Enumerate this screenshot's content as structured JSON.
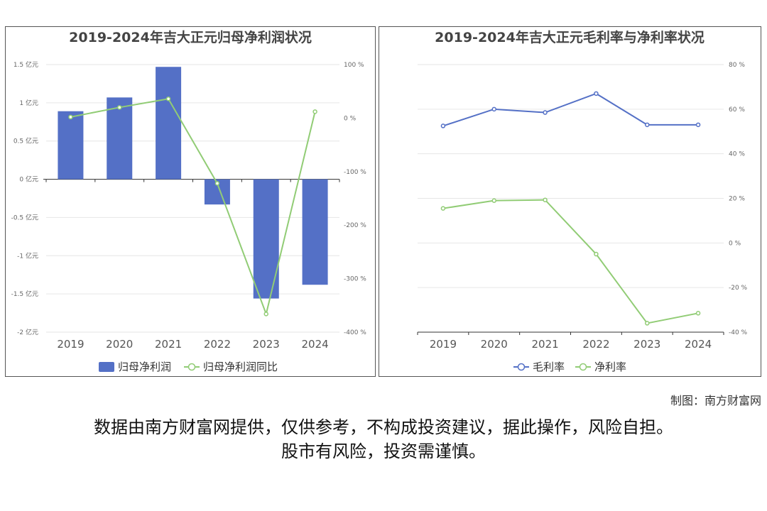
{
  "chart_data": [
    {
      "type": "bar",
      "title": "2019-2024年吉大正元归母净利润状况",
      "categories": [
        "2019",
        "2020",
        "2021",
        "2022",
        "2023",
        "2024"
      ],
      "series": [
        {
          "name": "归母净利润",
          "type": "bar",
          "axis": "left",
          "color": "#5470c6",
          "values": [
            0.89,
            1.07,
            1.47,
            -0.33,
            -1.56,
            -1.38
          ]
        },
        {
          "name": "归母净利润同比",
          "type": "line",
          "axis": "right",
          "color": "#91cc75",
          "values": [
            2,
            20,
            36,
            -122,
            -366,
            12
          ]
        }
      ],
      "left_axis": {
        "ticks": [
          "1.5 亿元",
          "1 亿元",
          "0.5 亿元",
          "0 亿元",
          "-0.5 亿元",
          "-1 亿元",
          "-1.5 亿元",
          "-2 亿元"
        ],
        "range": [
          -2,
          1.5
        ]
      },
      "right_axis": {
        "ticks": [
          "100 %",
          "0 %",
          "-100 %",
          "-200 %",
          "-300 %",
          "-400 %"
        ],
        "range": [
          -400,
          100
        ]
      },
      "legend": "bottom"
    },
    {
      "type": "line",
      "title": "2019-2024年吉大正元毛利率与净利率状况",
      "categories": [
        "2019",
        "2020",
        "2021",
        "2022",
        "2023",
        "2024"
      ],
      "series": [
        {
          "name": "毛利率",
          "color": "#5470c6",
          "values": [
            52.5,
            60,
            58.5,
            67,
            53,
            53
          ]
        },
        {
          "name": "净利率",
          "color": "#91cc75",
          "values": [
            15.5,
            19,
            19.3,
            -5,
            -36,
            -31.5
          ]
        }
      ],
      "right_axis": {
        "ticks": [
          "80 %",
          "60 %",
          "40 %",
          "20 %",
          "0 %",
          "-20 %",
          "-40 %"
        ],
        "range": [
          -40,
          80
        ]
      },
      "legend": "bottom"
    }
  ],
  "credit": "制图：南方财富网",
  "disclaimer": {
    "line1": "数据由南方财富网提供，仅供参考，不构成投资建议，据此操作，风险自担。",
    "line2": "股市有风险，投资需谨慎。"
  }
}
